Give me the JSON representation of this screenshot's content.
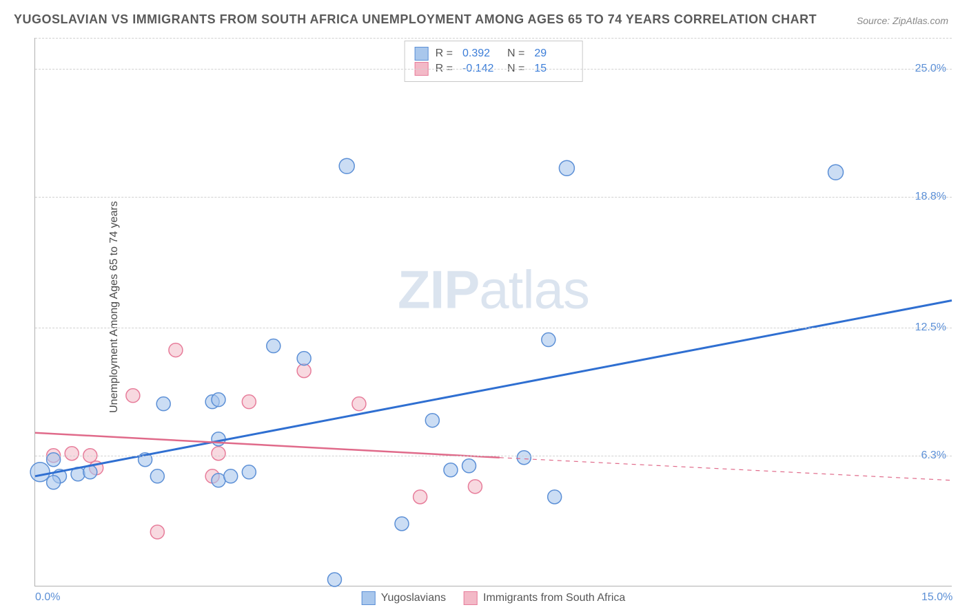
{
  "title": "YUGOSLAVIAN VS IMMIGRANTS FROM SOUTH AFRICA UNEMPLOYMENT AMONG AGES 65 TO 74 YEARS CORRELATION CHART",
  "source": "Source: ZipAtlas.com",
  "watermark_zip": "ZIP",
  "watermark_atlas": "atlas",
  "ylabel": "Unemployment Among Ages 65 to 74 years",
  "chart": {
    "type": "scatter",
    "xlim": [
      0,
      15
    ],
    "ylim": [
      0,
      26.5
    ],
    "xticks": [
      {
        "v": 0,
        "label": "0.0%"
      },
      {
        "v": 15,
        "label": "15.0%"
      }
    ],
    "yticks": [
      {
        "v": 6.3,
        "label": "6.3%"
      },
      {
        "v": 12.5,
        "label": "12.5%"
      },
      {
        "v": 18.8,
        "label": "18.8%"
      },
      {
        "v": 25.0,
        "label": "25.0%"
      }
    ],
    "grid_top_line": true,
    "background_color": "#ffffff",
    "grid_color": "#d0d0d0",
    "marker_radius": 10,
    "marker_radius_small": 8,
    "series": [
      {
        "name": "Yugoslavians",
        "fill": "#a9c7ec",
        "stroke": "#5b8fd6",
        "fill_opacity": 0.6,
        "line_color": "#2f6fd1",
        "line_width": 3,
        "trend": {
          "x1": 0,
          "y1": 5.3,
          "x2": 15,
          "y2": 13.8,
          "dash": false
        },
        "R_label": "R =",
        "R": "0.392",
        "N_label": "N =",
        "N": "29",
        "points": [
          {
            "x": 0.08,
            "y": 5.5,
            "r": 14
          },
          {
            "x": 0.4,
            "y": 5.3
          },
          {
            "x": 0.7,
            "y": 5.4
          },
          {
            "x": 0.9,
            "y": 5.5
          },
          {
            "x": 0.3,
            "y": 6.1
          },
          {
            "x": 0.3,
            "y": 5.0
          },
          {
            "x": 1.8,
            "y": 6.1
          },
          {
            "x": 2.0,
            "y": 5.3
          },
          {
            "x": 2.1,
            "y": 8.8
          },
          {
            "x": 2.9,
            "y": 8.9
          },
          {
            "x": 3.0,
            "y": 9.0
          },
          {
            "x": 3.0,
            "y": 5.1
          },
          {
            "x": 3.0,
            "y": 7.1
          },
          {
            "x": 3.2,
            "y": 5.3
          },
          {
            "x": 3.5,
            "y": 5.5
          },
          {
            "x": 3.9,
            "y": 11.6
          },
          {
            "x": 4.4,
            "y": 11.0
          },
          {
            "x": 4.9,
            "y": 0.3
          },
          {
            "x": 5.1,
            "y": 20.3,
            "r": 11
          },
          {
            "x": 6.0,
            "y": 3.0
          },
          {
            "x": 6.5,
            "y": 8.0
          },
          {
            "x": 6.8,
            "y": 5.6
          },
          {
            "x": 7.1,
            "y": 5.8
          },
          {
            "x": 8.0,
            "y": 6.2
          },
          {
            "x": 8.4,
            "y": 11.9
          },
          {
            "x": 8.5,
            "y": 4.3
          },
          {
            "x": 8.7,
            "y": 20.2,
            "r": 11
          },
          {
            "x": 13.1,
            "y": 20.0,
            "r": 11
          }
        ]
      },
      {
        "name": "Immigrants from South Africa",
        "fill": "#f3b9c7",
        "stroke": "#e77c9a",
        "fill_opacity": 0.55,
        "line_color": "#e06a8a",
        "line_width": 2.5,
        "trend": {
          "x1": 0,
          "y1": 7.4,
          "x2": 7.6,
          "y2": 6.2,
          "dash": false
        },
        "trend_ext": {
          "x1": 7.6,
          "y1": 6.2,
          "x2": 15,
          "y2": 5.1,
          "dash": true
        },
        "R_label": "R =",
        "R": "-0.142",
        "N_label": "N =",
        "N": "15",
        "points": [
          {
            "x": 0.3,
            "y": 6.3
          },
          {
            "x": 0.6,
            "y": 6.4
          },
          {
            "x": 0.9,
            "y": 6.3
          },
          {
            "x": 1.0,
            "y": 5.7
          },
          {
            "x": 1.6,
            "y": 9.2
          },
          {
            "x": 2.0,
            "y": 2.6
          },
          {
            "x": 2.3,
            "y": 11.4
          },
          {
            "x": 2.9,
            "y": 5.3
          },
          {
            "x": 3.0,
            "y": 6.4
          },
          {
            "x": 3.5,
            "y": 8.9
          },
          {
            "x": 4.4,
            "y": 10.4
          },
          {
            "x": 5.3,
            "y": 8.8
          },
          {
            "x": 6.3,
            "y": 4.3
          },
          {
            "x": 7.2,
            "y": 4.8
          }
        ]
      }
    ]
  }
}
